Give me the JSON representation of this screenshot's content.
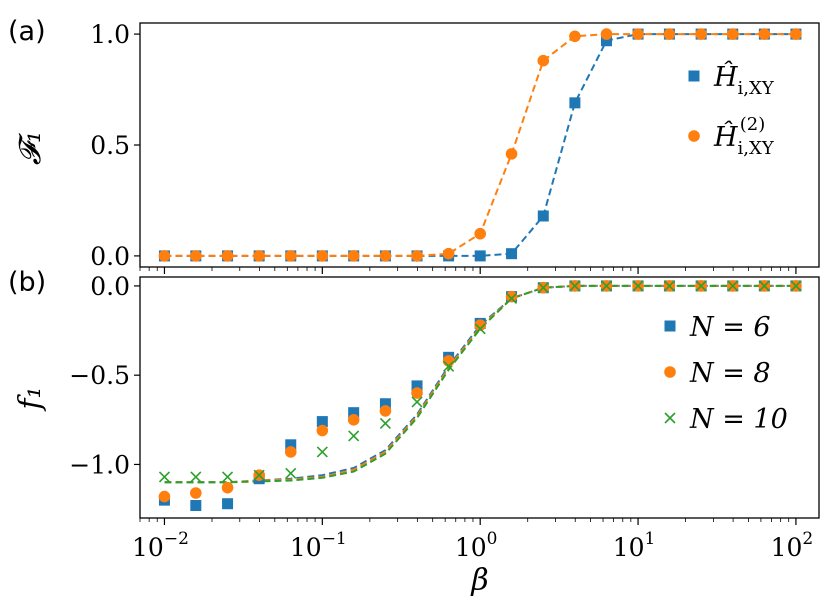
{
  "chart_data": [
    {
      "panel_label": "(a)",
      "type": "line",
      "xscale": "log",
      "xlim": [
        0.007,
        140
      ],
      "ylim": [
        -0.05,
        1.05
      ],
      "ylabel": "𝓕₁",
      "xlabel": "",
      "yticks": [
        0.0,
        0.5,
        1.0
      ],
      "ytick_labels": [
        "0.0",
        "0.5",
        "1.0"
      ],
      "legend_position": "center-right",
      "x": [
        0.01,
        0.0158,
        0.0251,
        0.0398,
        0.0631,
        0.1,
        0.158,
        0.251,
        0.398,
        0.631,
        1.0,
        1.58,
        2.51,
        3.98,
        6.31,
        10,
        15.8,
        25.1,
        39.8,
        63.1,
        100
      ],
      "series": [
        {
          "name": "H_XY",
          "legend_main": "Ĥ",
          "legend_sub": "i,XY",
          "legend_sup": "",
          "color": "#1f77b4",
          "marker": "square",
          "values": [
            0,
            0,
            0,
            0,
            0,
            0,
            0,
            0,
            0,
            0,
            0,
            0.01,
            0.18,
            0.69,
            0.97,
            1.0,
            1.0,
            1.0,
            1.0,
            1.0,
            1.0
          ]
        },
        {
          "name": "H2_XY",
          "legend_main": "Ĥ",
          "legend_sub": "i,XY",
          "legend_sup": "(2)",
          "color": "#ff7f0e",
          "marker": "circle",
          "values": [
            0,
            0,
            0,
            0,
            0,
            0,
            0,
            0,
            0,
            0.01,
            0.1,
            0.46,
            0.88,
            0.99,
            1.0,
            1.0,
            1.0,
            1.0,
            1.0,
            1.0,
            1.0
          ]
        }
      ]
    },
    {
      "panel_label": "(b)",
      "type": "scatter",
      "xscale": "log",
      "xlim": [
        0.007,
        140
      ],
      "ylim": [
        -1.3,
        0.05
      ],
      "ylabel": "f₁",
      "xlabel": "β",
      "yticks": [
        0.0,
        -0.5,
        -1.0
      ],
      "ytick_labels": [
        "0.0",
        "−0.5",
        "−1.0"
      ],
      "xticks": [
        0.01,
        0.1,
        1,
        10,
        100
      ],
      "xtick_bases": [
        "10",
        "10",
        "10",
        "10",
        "10"
      ],
      "xtick_exps": [
        "−2",
        "−1",
        "0",
        "1",
        "2"
      ],
      "legend_position": "center-right",
      "x": [
        0.01,
        0.0158,
        0.0251,
        0.0398,
        0.0631,
        0.1,
        0.158,
        0.251,
        0.398,
        0.631,
        1.0,
        1.58,
        2.51,
        3.98,
        6.31,
        10,
        15.8,
        25.1,
        39.8,
        63.1,
        100
      ],
      "series": [
        {
          "name": "N = 6",
          "legend_text": "N = 6",
          "color": "#1f77b4",
          "marker": "square",
          "values": [
            -1.2,
            -1.23,
            -1.22,
            -1.08,
            -0.89,
            -0.76,
            -0.71,
            -0.66,
            -0.56,
            -0.4,
            -0.21,
            -0.06,
            -0.01,
            0,
            0,
            0,
            0,
            0,
            0,
            0,
            0
          ],
          "curve": [
            -1.1,
            -1.1,
            -1.1,
            -1.09,
            -1.08,
            -1.06,
            -1.02,
            -0.92,
            -0.72,
            -0.45,
            -0.22,
            -0.07,
            -0.01,
            0,
            0,
            0,
            0,
            0,
            0,
            0,
            0
          ]
        },
        {
          "name": "N = 8",
          "legend_text": "N = 8",
          "color": "#ff7f0e",
          "marker": "circle",
          "values": [
            -1.18,
            -1.16,
            -1.13,
            -1.06,
            -0.93,
            -0.81,
            -0.75,
            -0.7,
            -0.6,
            -0.42,
            -0.22,
            -0.06,
            -0.01,
            0,
            0,
            0,
            0,
            0,
            0,
            0,
            0
          ],
          "curve": [
            -1.1,
            -1.1,
            -1.1,
            -1.09,
            -1.085,
            -1.07,
            -1.03,
            -0.93,
            -0.73,
            -0.46,
            -0.23,
            -0.07,
            -0.01,
            0,
            0,
            0,
            0,
            0,
            0,
            0,
            0
          ]
        },
        {
          "name": "N = 10",
          "legend_text": "N = 10",
          "color": "#2ca02c",
          "marker": "x",
          "values": [
            -1.07,
            -1.07,
            -1.07,
            -1.06,
            -1.05,
            -0.93,
            -0.84,
            -0.77,
            -0.65,
            -0.45,
            -0.24,
            -0.07,
            -0.01,
            0,
            0,
            0,
            0,
            0,
            0,
            0,
            0
          ],
          "curve": [
            -1.1,
            -1.1,
            -1.1,
            -1.095,
            -1.09,
            -1.075,
            -1.04,
            -0.94,
            -0.74,
            -0.47,
            -0.24,
            -0.07,
            -0.01,
            0,
            0,
            0,
            0,
            0,
            0,
            0,
            0
          ]
        }
      ]
    }
  ]
}
